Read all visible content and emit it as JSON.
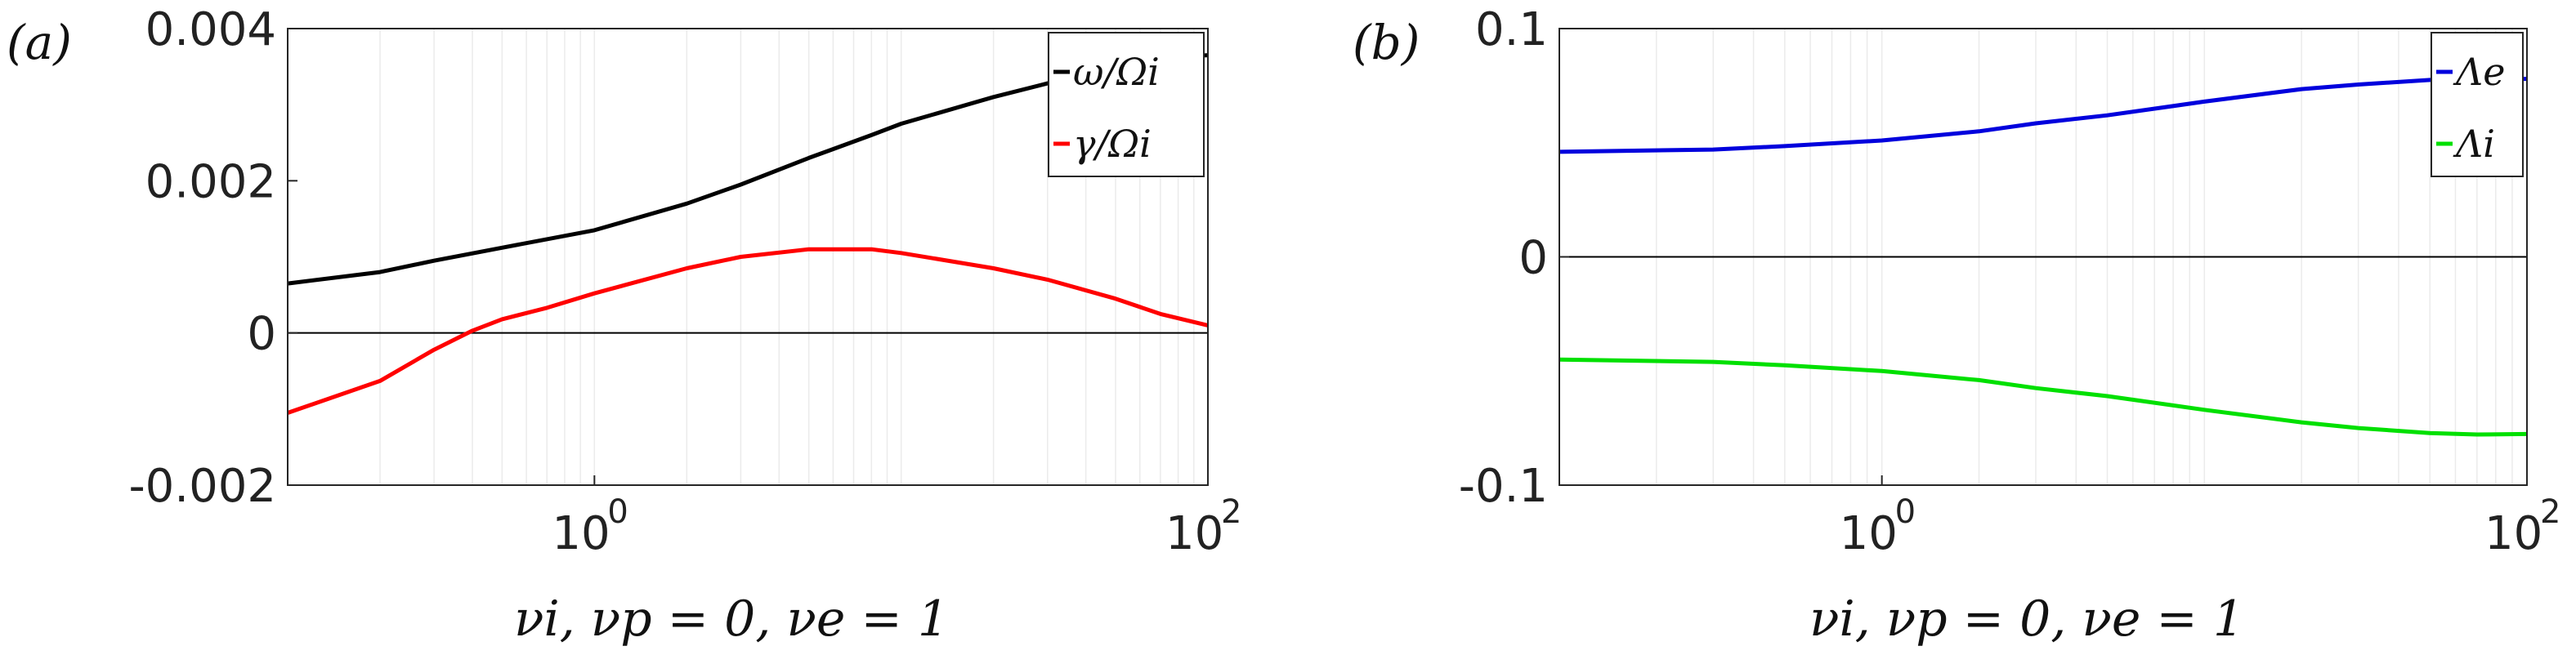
{
  "chart_data": [
    {
      "type": "line",
      "panel_label": "(a)",
      "xlabel": "νi, νp = 0, νe = 1",
      "xscale": "log",
      "xlim": [
        0.1,
        100
      ],
      "ylim": [
        -0.002,
        0.004
      ],
      "yticks": [
        "-0.002",
        "0",
        "0.002",
        "0.004"
      ],
      "xticks": [
        {
          "base": "10",
          "exp": "0",
          "value": 1
        },
        {
          "base": "10",
          "exp": "2",
          "value": 100
        }
      ],
      "grid": "x-minor",
      "legend_position": "top-right",
      "series": [
        {
          "name": "ω/Ωi",
          "color": "#000000",
          "x": [
            0.1,
            0.2,
            0.3,
            0.5,
            1,
            2,
            3,
            5,
            8,
            10,
            20,
            30,
            50,
            70,
            100
          ],
          "values": [
            0.00065,
            0.0008,
            0.00095,
            0.00112,
            0.00135,
            0.0017,
            0.00195,
            0.0023,
            0.0026,
            0.00275,
            0.0031,
            0.00328,
            0.00352,
            0.00362,
            0.00365
          ]
        },
        {
          "name": "γ/Ωi",
          "color": "#ff0000",
          "x": [
            0.1,
            0.2,
            0.3,
            0.4,
            0.5,
            0.7,
            1,
            2,
            3,
            5,
            8,
            10,
            20,
            30,
            50,
            70,
            100
          ],
          "values": [
            -0.00105,
            -0.00063,
            -0.00022,
            3e-05,
            0.00018,
            0.00033,
            0.00052,
            0.00085,
            0.001,
            0.0011,
            0.0011,
            0.00105,
            0.00085,
            0.0007,
            0.00045,
            0.00025,
            0.0001
          ]
        }
      ]
    },
    {
      "type": "line",
      "panel_label": "(b)",
      "xlabel": "νi, νp = 0, νe = 1",
      "xscale": "log",
      "xlim": [
        0.1,
        100
      ],
      "ylim": [
        -0.1,
        0.1
      ],
      "yticks": [
        "-0.1",
        "0",
        "0.1"
      ],
      "xticks": [
        {
          "base": "10",
          "exp": "0",
          "value": 1
        },
        {
          "base": "10",
          "exp": "2",
          "value": 100
        }
      ],
      "grid": "x-minor",
      "legend_position": "top-right",
      "series": [
        {
          "name": "Λe",
          "color": "#0000dd",
          "x": [
            0.1,
            0.3,
            0.5,
            1,
            2,
            3,
            5,
            10,
            20,
            30,
            50,
            70,
            100
          ],
          "values": [
            0.046,
            0.047,
            0.0485,
            0.051,
            0.055,
            0.0585,
            0.062,
            0.068,
            0.0735,
            0.0755,
            0.0775,
            0.0778,
            0.078
          ]
        },
        {
          "name": "Λi",
          "color": "#00e000",
          "x": [
            0.1,
            0.3,
            0.5,
            1,
            2,
            3,
            5,
            10,
            20,
            30,
            50,
            70,
            100
          ],
          "values": [
            -0.045,
            -0.046,
            -0.0475,
            -0.05,
            -0.054,
            -0.0575,
            -0.061,
            -0.067,
            -0.0725,
            -0.075,
            -0.0772,
            -0.0778,
            -0.0776
          ]
        }
      ]
    }
  ]
}
